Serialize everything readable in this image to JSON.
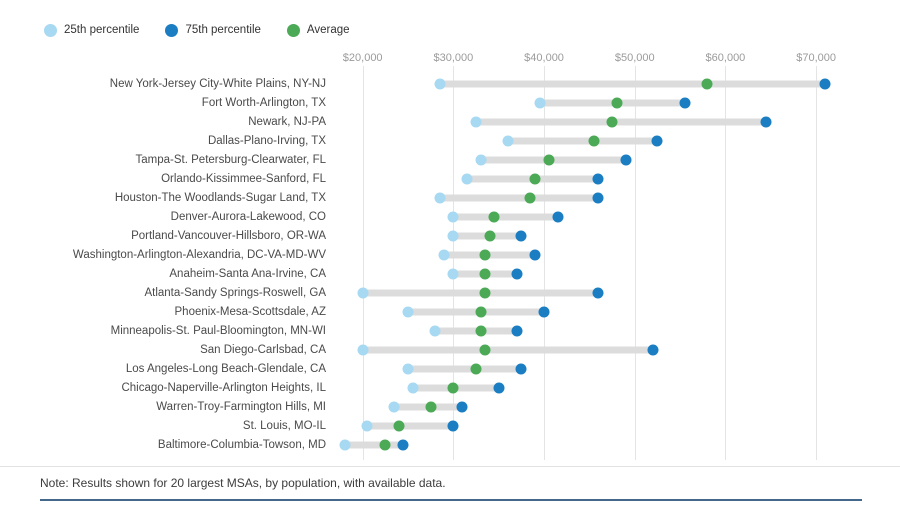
{
  "legend": [
    {
      "label": "25th percentile",
      "color": "#a7d9f2"
    },
    {
      "label": "75th percentile",
      "color": "#1b7ec2"
    },
    {
      "label": "Average",
      "color": "#4caa57"
    }
  ],
  "note": "Note: Results shown for 20 largest MSAs, by population, with available data.",
  "colors": {
    "p25": "#a7d9f2",
    "p75": "#1b7ec2",
    "avg": "#4caa57",
    "range_bar": "#dcdcdc",
    "gridline": "#e4e4e4",
    "bottom_rule": "#44688c"
  },
  "chart_data": {
    "type": "dumbbell",
    "title": "",
    "xlabel": "",
    "ylabel": "",
    "x_domain": [
      17500,
      75500
    ],
    "x_ticks": [
      {
        "value": 20000,
        "label": "$20,000"
      },
      {
        "value": 30000,
        "label": "$30,000"
      },
      {
        "value": 40000,
        "label": "$40,000"
      },
      {
        "value": 50000,
        "label": "$50,000"
      },
      {
        "value": 60000,
        "label": "$60,000"
      },
      {
        "value": 70000,
        "label": "$70,000"
      }
    ],
    "series_names": [
      "25th percentile",
      "75th percentile",
      "Average"
    ],
    "rows": [
      {
        "label": "New York-Jersey City-White Plains, NY-NJ",
        "p25": 28500,
        "avg": 58000,
        "p75": 71000
      },
      {
        "label": "Fort Worth-Arlington, TX",
        "p25": 39500,
        "avg": 48000,
        "p75": 55500
      },
      {
        "label": "Newark, NJ-PA",
        "p25": 32500,
        "avg": 47500,
        "p75": 64500
      },
      {
        "label": "Dallas-Plano-Irving, TX",
        "p25": 36000,
        "avg": 45500,
        "p75": 52500
      },
      {
        "label": "Tampa-St. Petersburg-Clearwater, FL",
        "p25": 33000,
        "avg": 40500,
        "p75": 49000
      },
      {
        "label": "Orlando-Kissimmee-Sanford, FL",
        "p25": 31500,
        "avg": 39000,
        "p75": 46000
      },
      {
        "label": "Houston-The Woodlands-Sugar Land, TX",
        "p25": 28500,
        "avg": 38500,
        "p75": 46000
      },
      {
        "label": "Denver-Aurora-Lakewood, CO",
        "p25": 30000,
        "avg": 34500,
        "p75": 41500
      },
      {
        "label": "Portland-Vancouver-Hillsboro, OR-WA",
        "p25": 30000,
        "avg": 34000,
        "p75": 37500
      },
      {
        "label": "Washington-Arlington-Alexandria, DC-VA-MD-WV",
        "p25": 29000,
        "avg": 33500,
        "p75": 39000
      },
      {
        "label": "Anaheim-Santa Ana-Irvine, CA",
        "p25": 30000,
        "avg": 33500,
        "p75": 37000
      },
      {
        "label": "Atlanta-Sandy Springs-Roswell, GA",
        "p25": 20000,
        "avg": 33500,
        "p75": 46000
      },
      {
        "label": "Phoenix-Mesa-Scottsdale, AZ",
        "p25": 25000,
        "avg": 33000,
        "p75": 40000
      },
      {
        "label": "Minneapolis-St. Paul-Bloomington, MN-WI",
        "p25": 28000,
        "avg": 33000,
        "p75": 37000
      },
      {
        "label": "San Diego-Carlsbad, CA",
        "p25": 20000,
        "avg": 33500,
        "p75": 52000
      },
      {
        "label": "Los Angeles-Long Beach-Glendale, CA",
        "p25": 25000,
        "avg": 32500,
        "p75": 37500
      },
      {
        "label": "Chicago-Naperville-Arlington Heights, IL",
        "p25": 25500,
        "avg": 30000,
        "p75": 35000
      },
      {
        "label": "Warren-Troy-Farmington Hills, MI",
        "p25": 23500,
        "avg": 27500,
        "p75": 31000
      },
      {
        "label": "St. Louis, MO-IL",
        "p25": 20500,
        "avg": 24000,
        "p75": 30000
      },
      {
        "label": "Baltimore-Columbia-Towson, MD",
        "p25": 18000,
        "avg": 22500,
        "p75": 24500
      }
    ]
  }
}
